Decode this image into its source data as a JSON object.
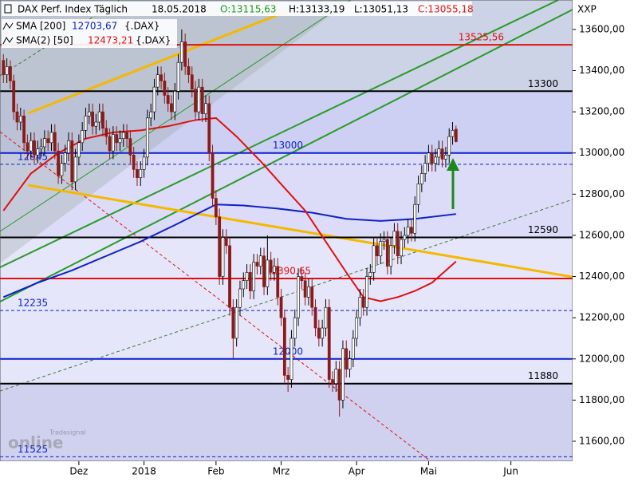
{
  "chart_data": {
    "type": "candlestick",
    "title": "DAX Perf. Index Täglich",
    "date": "18.05.2018",
    "ohlc_labels": [
      "O:13115,63",
      "H:13133,19",
      "L:13051,13",
      "C:13055,18"
    ],
    "axis_unit": "XXP",
    "watermark": [
      "Tradesignal",
      "online"
    ],
    "up_color": "#ffffff",
    "down_color": "#8b1a1a",
    "xlim": [
      -1,
      166
    ],
    "ylim": [
      11503,
      13743
    ],
    "xticks": [
      {
        "value": 22,
        "label": "Dez"
      },
      {
        "value": 41,
        "label": "2018"
      },
      {
        "value": 62,
        "label": "Feb"
      },
      {
        "value": 81,
        "label": "Mrz"
      },
      {
        "value": 103,
        "label": "Apr"
      },
      {
        "value": 124,
        "label": "Mai"
      },
      {
        "value": 148,
        "label": "Jun"
      }
    ],
    "yticks": [
      {
        "value": 11600,
        "label": "11600,00"
      },
      {
        "value": 11800,
        "label": "11800,00"
      },
      {
        "value": 12000,
        "label": "12000,00"
      },
      {
        "value": 12200,
        "label": "12200,00"
      },
      {
        "value": 12400,
        "label": "12400,00"
      },
      {
        "value": 12600,
        "label": "12600,00"
      },
      {
        "value": 12800,
        "label": "12800,00"
      },
      {
        "value": 13000,
        "label": "13000,00"
      },
      {
        "value": 13200,
        "label": "13200,00"
      },
      {
        "value": 13400,
        "label": "13400,00"
      },
      {
        "value": 13600,
        "label": "13600,00"
      }
    ],
    "levels": [
      {
        "value": 13525.56,
        "label": "13525,56",
        "color": "#e01010",
        "style": "solid"
      },
      {
        "value": 13300,
        "label": "13300",
        "color": "#000000",
        "style": "solid"
      },
      {
        "value": 13000,
        "label": "13000",
        "color": "#0a1ed0",
        "style": "solid"
      },
      {
        "value": 12945,
        "label": "12945",
        "color": "#0a1ed0",
        "style": "dashed"
      },
      {
        "value": 12590,
        "label": "12590",
        "color": "#000000",
        "style": "solid"
      },
      {
        "value": 12390.65,
        "label": "12390,65",
        "color": "#e01010",
        "style": "solid"
      },
      {
        "value": 12235,
        "label": "12235",
        "color": "#0a1ed0",
        "style": "dashed"
      },
      {
        "value": 12000,
        "label": "12000",
        "color": "#0a1ed0",
        "style": "solid"
      },
      {
        "value": 11880,
        "label": "11880",
        "color": "#000000",
        "style": "solid"
      },
      {
        "value": 11525,
        "label": "11525",
        "color": "#0a1ed0",
        "style": "dashed"
      }
    ],
    "series": [
      {
        "name": "SMA [200]",
        "value_label": "12703,67",
        "source": "{.DAX}",
        "color": "#1020c8",
        "x": [
          0,
          10,
          20,
          30,
          40,
          50,
          62,
          70,
          80,
          90,
          100,
          110,
          120,
          132
        ],
        "values": [
          12300,
          12370,
          12430,
          12500,
          12570,
          12650,
          12750,
          12745,
          12730,
          12710,
          12680,
          12670,
          12680,
          12703.67
        ]
      },
      {
        "name": "SMA(2) [50]",
        "value_label": "12473,21",
        "source": "{.DAX}",
        "color": "#e01010",
        "x": [
          0,
          8,
          16,
          24,
          32,
          40,
          48,
          56,
          62,
          68,
          75,
          82,
          88,
          94,
          100,
          105,
          110,
          115,
          120,
          125,
          132
        ],
        "values": [
          12720,
          12900,
          13000,
          13070,
          13100,
          13110,
          13130,
          13160,
          13170,
          13080,
          12960,
          12830,
          12720,
          12570,
          12420,
          12300,
          12280,
          12300,
          12330,
          12370,
          12473.21
        ]
      }
    ],
    "ohlc": [
      [
        13450,
        13480,
        13340,
        13380
      ],
      [
        13380,
        13460,
        13340,
        13420
      ],
      [
        13420,
        13450,
        13310,
        13350
      ],
      [
        13350,
        13380,
        13160,
        13200
      ],
      [
        13200,
        13240,
        13110,
        13150
      ],
      [
        13150,
        13220,
        13110,
        13180
      ],
      [
        13180,
        13210,
        13010,
        13050
      ],
      [
        13050,
        13090,
        12970,
        13010
      ],
      [
        13010,
        13100,
        12970,
        13060
      ],
      [
        13060,
        13100,
        12950,
        12990
      ],
      [
        12990,
        13060,
        12950,
        13020
      ],
      [
        13020,
        13070,
        12980,
        13030
      ],
      [
        13030,
        13110,
        12990,
        13070
      ],
      [
        13070,
        13110,
        13010,
        13050
      ],
      [
        13050,
        13140,
        13010,
        13100
      ],
      [
        13100,
        13140,
        12970,
        13010
      ],
      [
        13010,
        13050,
        12850,
        12890
      ],
      [
        12890,
        12990,
        12850,
        12950
      ],
      [
        12950,
        13040,
        12910,
        13000
      ],
      [
        13000,
        13100,
        12960,
        13060
      ],
      [
        13060,
        13100,
        12820,
        12860
      ],
      [
        12860,
        13020,
        12820,
        12980
      ],
      [
        12980,
        13090,
        12940,
        13050
      ],
      [
        13050,
        13150,
        13010,
        13110
      ],
      [
        13110,
        13220,
        13070,
        13180
      ],
      [
        13180,
        13240,
        13140,
        13200
      ],
      [
        13200,
        13240,
        13090,
        13130
      ],
      [
        13130,
        13190,
        13090,
        13150
      ],
      [
        13150,
        13240,
        13110,
        13200
      ],
      [
        13200,
        13240,
        13080,
        13120
      ],
      [
        13120,
        13160,
        13040,
        13080
      ],
      [
        13080,
        13120,
        12970,
        13010
      ],
      [
        13010,
        13130,
        12970,
        13090
      ],
      [
        13090,
        13130,
        13010,
        13050
      ],
      [
        13050,
        13110,
        13010,
        13070
      ],
      [
        13070,
        13140,
        13030,
        13100
      ],
      [
        13100,
        13140,
        13030,
        13070
      ],
      [
        13070,
        13110,
        12950,
        12990
      ],
      [
        12990,
        13030,
        12880,
        12920
      ],
      [
        12920,
        12960,
        12840,
        12880
      ],
      [
        12880,
        12960,
        12840,
        12920
      ],
      [
        12920,
        13020,
        12880,
        12980
      ],
      [
        12980,
        13210,
        12940,
        13170
      ],
      [
        13170,
        13240,
        13130,
        13200
      ],
      [
        13200,
        13360,
        13160,
        13320
      ],
      [
        13320,
        13420,
        13280,
        13380
      ],
      [
        13380,
        13420,
        13310,
        13350
      ],
      [
        13350,
        13390,
        13240,
        13280
      ],
      [
        13280,
        13320,
        13200,
        13240
      ],
      [
        13240,
        13280,
        13160,
        13200
      ],
      [
        13200,
        13340,
        13160,
        13300
      ],
      [
        13300,
        13480,
        13260,
        13440
      ],
      [
        13440,
        13600,
        13400,
        13540
      ],
      [
        13540,
        13580,
        13380,
        13420
      ],
      [
        13420,
        13460,
        13340,
        13380
      ],
      [
        13380,
        13420,
        13270,
        13310
      ],
      [
        13310,
        13350,
        13160,
        13200
      ],
      [
        13200,
        13360,
        13160,
        13320
      ],
      [
        13320,
        13360,
        13150,
        13190
      ],
      [
        13190,
        13280,
        13150,
        13240
      ],
      [
        13240,
        13280,
        12960,
        13000
      ],
      [
        13000,
        13040,
        12740,
        12780
      ],
      [
        12780,
        12820,
        12650,
        12690
      ],
      [
        12690,
        12730,
        12360,
        12400
      ],
      [
        12400,
        12630,
        12360,
        12590
      ],
      [
        12590,
        12630,
        12510,
        12550
      ],
      [
        12550,
        12590,
        12210,
        12250
      ],
      [
        12250,
        12290,
        12000,
        12100
      ],
      [
        12100,
        12290,
        12060,
        12250
      ],
      [
        12250,
        12380,
        12210,
        12340
      ],
      [
        12340,
        12420,
        12300,
        12380
      ],
      [
        12380,
        12460,
        12340,
        12420
      ],
      [
        12420,
        12460,
        12290,
        12330
      ],
      [
        12330,
        12510,
        12290,
        12470
      ],
      [
        12470,
        12510,
        12410,
        12450
      ],
      [
        12450,
        12540,
        12410,
        12500
      ],
      [
        12500,
        12540,
        12310,
        12350
      ],
      [
        12350,
        12600,
        12310,
        12480
      ],
      [
        12480,
        12520,
        12380,
        12420
      ],
      [
        12420,
        12490,
        12380,
        12450
      ],
      [
        12450,
        12490,
        12260,
        12300
      ],
      [
        12300,
        12340,
        12160,
        12200
      ],
      [
        12200,
        12240,
        11880,
        11920
      ],
      [
        11920,
        11960,
        11840,
        11900
      ],
      [
        11900,
        12140,
        11860,
        12100
      ],
      [
        12100,
        12240,
        12060,
        12200
      ],
      [
        12200,
        12440,
        12160,
        12400
      ],
      [
        12400,
        12440,
        12340,
        12380
      ],
      [
        12380,
        12420,
        12260,
        12300
      ],
      [
        12300,
        12390,
        12260,
        12350
      ],
      [
        12350,
        12390,
        12210,
        12250
      ],
      [
        12250,
        12290,
        12110,
        12150
      ],
      [
        12150,
        12190,
        12060,
        12100
      ],
      [
        12100,
        12190,
        12060,
        12150
      ],
      [
        12150,
        12290,
        12110,
        12250
      ],
      [
        12250,
        12290,
        11860,
        11900
      ],
      [
        11900,
        11940,
        11840,
        11880
      ],
      [
        11880,
        11990,
        11840,
        11950
      ],
      [
        11950,
        11990,
        11720,
        11800
      ],
      [
        11800,
        12090,
        11760,
        12050
      ],
      [
        12050,
        12090,
        11910,
        11950
      ],
      [
        11950,
        12040,
        11910,
        12000
      ],
      [
        12000,
        12140,
        11960,
        12100
      ],
      [
        12100,
        12240,
        12060,
        12200
      ],
      [
        12200,
        12340,
        12160,
        12300
      ],
      [
        12300,
        12340,
        12210,
        12250
      ],
      [
        12250,
        12440,
        12210,
        12400
      ],
      [
        12400,
        12460,
        12360,
        12420
      ],
      [
        12420,
        12590,
        12380,
        12550
      ],
      [
        12550,
        12590,
        12460,
        12500
      ],
      [
        12500,
        12610,
        12460,
        12570
      ],
      [
        12570,
        12620,
        12530,
        12580
      ],
      [
        12580,
        12620,
        12410,
        12450
      ],
      [
        12450,
        12590,
        12410,
        12550
      ],
      [
        12550,
        12660,
        12510,
        12620
      ],
      [
        12620,
        12660,
        12460,
        12500
      ],
      [
        12500,
        12620,
        12460,
        12580
      ],
      [
        12580,
        12640,
        12540,
        12600
      ],
      [
        12600,
        12680,
        12560,
        12640
      ],
      [
        12640,
        12680,
        12570,
        12610
      ],
      [
        12610,
        12790,
        12570,
        12750
      ],
      [
        12750,
        12890,
        12710,
        12850
      ],
      [
        12850,
        12940,
        12810,
        12900
      ],
      [
        12900,
        12990,
        12860,
        12950
      ],
      [
        12950,
        13040,
        12910,
        13000
      ],
      [
        13000,
        13040,
        12910,
        12950
      ],
      [
        12950,
        13020,
        12910,
        12980
      ],
      [
        12980,
        13060,
        12940,
        13020
      ],
      [
        13020,
        13060,
        12930,
        12970
      ],
      [
        12970,
        13030,
        12930,
        12990
      ],
      [
        12990,
        13120,
        12950,
        13080
      ],
      [
        13080,
        13150,
        13040,
        13110
      ],
      [
        13115.63,
        13133.19,
        13051.13,
        13055.18
      ]
    ]
  }
}
